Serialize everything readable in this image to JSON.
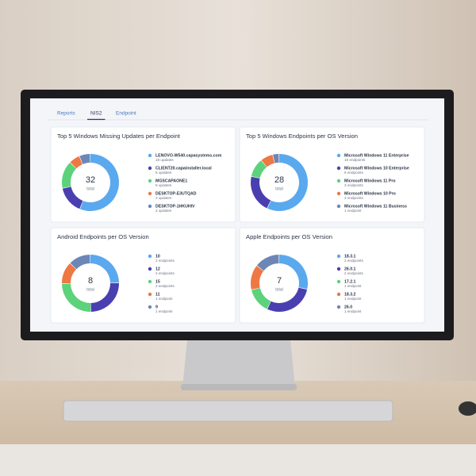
{
  "tabs": [
    "Reports",
    "NIS2",
    "Endpoint"
  ],
  "active_tab": 1,
  "chart_data": [
    {
      "type": "donut",
      "title": "Top 5 Windows Missing Updates per Endpoint",
      "categories": [
        "LENOVO-W540.capasystems.com",
        "CLIENT20.capainstaller.local",
        "MGSCAPAONE1",
        "DESKTOP-E3UTQAD",
        "DESKTOP-1HKUHIV"
      ],
      "values": [
        18,
        5,
        5,
        2,
        2
      ],
      "value_labels": [
        "18 updates",
        "5 updates",
        "5 updates",
        "2 updates",
        "2 updates"
      ],
      "colors": [
        "#5aa9ee",
        "#4a3fb0",
        "#5cd27a",
        "#ee7744",
        "#6c86b6"
      ],
      "total": 32,
      "total_label": "total"
    },
    {
      "type": "donut",
      "title": "Top 5 Windows Endpoints per OS Version",
      "categories": [
        "Microsoft Windows 11 Enterprise",
        "Microsoft Windows 10 Enterprise",
        "Microsoft Windows 11 Pro",
        "Microsoft Windows 10 Pro",
        "Microsoft Windows 11 Business"
      ],
      "values": [
        16,
        6,
        3,
        2,
        1
      ],
      "value_labels": [
        "16 endpoints",
        "6 endpoints",
        "3 endpoints",
        "2 endpoints",
        "1 endpoint"
      ],
      "colors": [
        "#5aa9ee",
        "#4a3fb0",
        "#5cd27a",
        "#ee7744",
        "#6c86b6"
      ],
      "total": 28,
      "total_label": "total"
    },
    {
      "type": "donut",
      "title": "Android Endpoints per OS Version",
      "categories": [
        "10",
        "12",
        "15",
        "11",
        "9"
      ],
      "values": [
        2,
        2,
        2,
        1,
        1
      ],
      "value_labels": [
        "2 endpoints",
        "2 endpoints",
        "2 endpoints",
        "1 endpoint",
        "1 endpoint"
      ],
      "colors": [
        "#5aa9ee",
        "#4a3fb0",
        "#5cd27a",
        "#ee7744",
        "#6c86b6"
      ],
      "total": 8,
      "total_label": "total"
    },
    {
      "type": "donut",
      "title": "Apple Endpoints per OS Version",
      "categories": [
        "18.3.1",
        "26.0.1",
        "17.2.1",
        "18.3.2",
        "26.0"
      ],
      "values": [
        2,
        2,
        1,
        1,
        1
      ],
      "value_labels": [
        "2 endpoints",
        "2 endpoints",
        "1 endpoint",
        "1 endpoint",
        "1 endpoint"
      ],
      "colors": [
        "#5aa9ee",
        "#4a3fb0",
        "#5cd27a",
        "#ee7744",
        "#6c86b6"
      ],
      "total": 7,
      "total_label": "total"
    }
  ]
}
